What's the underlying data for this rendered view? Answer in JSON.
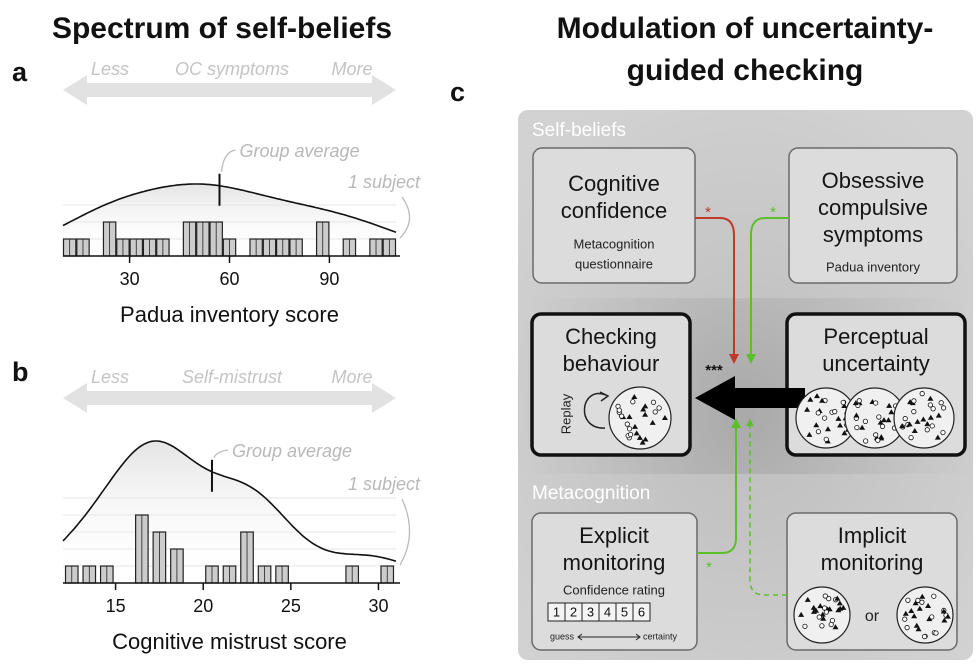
{
  "left_title": "Spectrum of self-beliefs",
  "chart_data": [
    {
      "type": "histogram",
      "panel": "a",
      "arrow_labels": [
        "Less",
        "OC symptoms",
        "More"
      ],
      "annotations": [
        "Group average",
        "1 subject"
      ],
      "group_average": 57,
      "xlabel": "Padua inventory score",
      "xlim": [
        10,
        110
      ],
      "xticks": [
        30,
        60,
        90
      ],
      "bins": [
        10,
        14,
        18,
        22,
        26,
        30,
        34,
        38,
        42,
        46,
        50,
        54,
        58,
        62,
        66,
        70,
        74,
        78,
        82,
        86,
        90,
        94,
        98,
        102,
        106,
        110
      ],
      "counts": [
        1,
        1,
        0,
        2,
        1,
        1,
        1,
        1,
        0,
        2,
        2,
        2,
        1,
        0,
        1,
        1,
        1,
        1,
        0,
        2,
        0,
        1,
        0,
        1,
        1
      ],
      "color": "#cccccc"
    },
    {
      "type": "histogram",
      "panel": "b",
      "arrow_labels": [
        "Less",
        "Self-mistrust",
        "More"
      ],
      "annotations": [
        "Group average",
        "1 subject"
      ],
      "group_average": 20.5,
      "xlabel": "Cognitive mistrust score",
      "xlim": [
        12,
        31
      ],
      "xticks": [
        15,
        20,
        25,
        30
      ],
      "bins": [
        12,
        13,
        14,
        15,
        16,
        17,
        18,
        19,
        20,
        21,
        22,
        23,
        24,
        25,
        26,
        27,
        28,
        29,
        30,
        31
      ],
      "counts": [
        1,
        1,
        1,
        0,
        4,
        3,
        2,
        0,
        1,
        1,
        3,
        1,
        1,
        0,
        0,
        0,
        1,
        0,
        1
      ],
      "color": "#cccccc"
    }
  ],
  "diagram": {
    "title_lines": [
      "Modulation of uncertainty-",
      "guided checking"
    ],
    "panel": "c",
    "sections": [
      "Self-beliefs",
      "Metacognition"
    ],
    "nodes": [
      {
        "lines": [
          "Cognitive",
          "confidence"
        ],
        "sublines": [
          "Metacognition",
          "questionnaire"
        ]
      },
      {
        "lines": [
          "Obsessive",
          "compulsive",
          "symptoms"
        ],
        "sublines": [
          "Padua inventory"
        ]
      },
      {
        "lines": [
          "Checking",
          "behaviour"
        ],
        "sublines": [
          "Replay"
        ]
      },
      {
        "lines": [
          "Perceptual",
          "uncertainty"
        ]
      },
      {
        "lines": [
          "Explicit",
          "monitoring"
        ],
        "sublines": [
          "Confidence rating"
        ]
      },
      {
        "lines": [
          "Implicit",
          "monitoring"
        ],
        "sublines": [
          "or"
        ]
      }
    ],
    "significance": "***",
    "stars": [
      "*",
      "*",
      "*"
    ],
    "rating_scale": [
      1,
      2,
      3,
      4,
      5,
      6
    ],
    "rating_ends": [
      "guess",
      "certainty"
    ]
  }
}
